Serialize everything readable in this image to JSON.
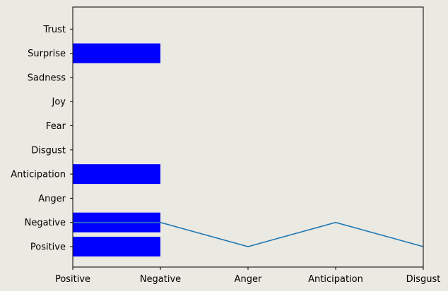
{
  "chart_data": {
    "type": "bar",
    "orientation": "horizontal-bar-with-line-overlay",
    "categories": [
      "Positive",
      "Negative",
      "Anger",
      "Anticipation",
      "Disgust",
      "Fear",
      "Joy",
      "Sadness",
      "Surprise",
      "Trust"
    ],
    "bars": {
      "values": [
        1,
        1,
        0,
        1,
        0,
        0,
        0,
        0,
        1,
        0
      ],
      "color": "#0000ff"
    },
    "line": {
      "x_categories": [
        "Positive",
        "Negative",
        "Anger",
        "Anticipation",
        "Disgust"
      ],
      "y_categories": [
        "Negative",
        "Negative",
        "Positive",
        "Negative",
        "Positive"
      ],
      "color": "#1f77b4"
    },
    "x_ticks": [
      "Positive",
      "Negative",
      "Anger",
      "Anticipation",
      "Disgust"
    ],
    "y_ticks": [
      "Positive",
      "Negative",
      "Anger",
      "Anticipation",
      "Disgust",
      "Fear",
      "Joy",
      "Sadness",
      "Surprise",
      "Trust"
    ],
    "xlim": [
      0,
      4
    ],
    "title": "",
    "xlabel": "",
    "ylabel": "",
    "grid": false,
    "background": "#eae9e2",
    "plot_background": "#eae9e2"
  }
}
